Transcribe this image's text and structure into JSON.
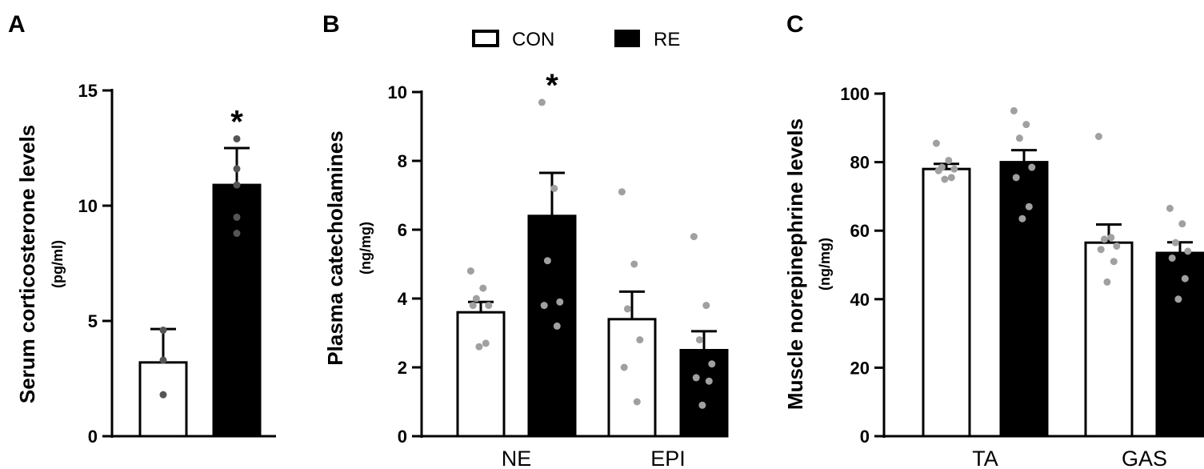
{
  "legend": {
    "con": "CON",
    "re": "RE"
  },
  "chart_data": [
    {
      "panel": "A",
      "type": "bar",
      "ylabel": "Serum corticosterone levels",
      "yunit": "(pg/ml)",
      "ylim": [
        0,
        15
      ],
      "yticks": [
        "0",
        "5",
        "10",
        "15"
      ],
      "categories": [
        ""
      ],
      "series": [
        {
          "name": "CON",
          "values": [
            3.2
          ],
          "error": [
            1.45
          ],
          "points": [
            [
              4.6,
              3.3,
              1.8
            ]
          ]
        },
        {
          "name": "RE",
          "values": [
            10.9
          ],
          "error": [
            1.6
          ],
          "points": [
            [
              12.9,
              11.6,
              10.9,
              9.5,
              8.8
            ]
          ]
        }
      ],
      "annotations": [
        {
          "series": "RE",
          "category": 0,
          "text": "*"
        }
      ]
    },
    {
      "panel": "B",
      "type": "bar",
      "ylabel": "Plasma catecholamines",
      "yunit": "(ng/mg)",
      "ylim": [
        0,
        10
      ],
      "yticks": [
        "0",
        "2",
        "4",
        "6",
        "8",
        "10"
      ],
      "categories": [
        "NE",
        "EPI"
      ],
      "series": [
        {
          "name": "CON",
          "values": [
            3.6,
            3.4
          ],
          "error": [
            0.3,
            0.8
          ],
          "points": [
            [
              4.8,
              4.3,
              4.0,
              3.8,
              3.8,
              2.7,
              2.6
            ],
            [
              7.1,
              5.0,
              3.7,
              2.8,
              2.0,
              1.0
            ]
          ]
        },
        {
          "name": "RE",
          "values": [
            6.4,
            2.5
          ],
          "error": [
            1.25,
            0.55
          ],
          "points": [
            [
              9.7,
              7.2,
              5.1,
              3.9,
              3.8,
              3.2
            ],
            [
              5.8,
              3.8,
              2.8,
              2.1,
              1.7,
              1.6,
              0.9
            ]
          ]
        }
      ],
      "annotations": [
        {
          "series": "RE",
          "category": 0,
          "text": "*"
        }
      ]
    },
    {
      "panel": "C",
      "type": "bar",
      "ylabel": "Muscle norepinephrine levels",
      "yunit": "(ng/mg)",
      "ylim": [
        0,
        100
      ],
      "yticks": [
        "0",
        "20",
        "40",
        "60",
        "80",
        "100"
      ],
      "categories": [
        "TA",
        "GAS"
      ],
      "series": [
        {
          "name": "CON",
          "values": [
            78,
            56.5
          ],
          "error": [
            1.5,
            5.3
          ],
          "points": [
            [
              85.5,
              80.5,
              78.5,
              78.0,
              77.5,
              75.5,
              75.0
            ],
            [
              87.5,
              58.0,
              57.5,
              55.5,
              54.5,
              51.0,
              45.0
            ]
          ]
        },
        {
          "name": "RE",
          "values": [
            80,
            53.5
          ],
          "error": [
            3.5,
            3.1
          ],
          "points": [
            [
              95.0,
              91.0,
              87.0,
              78.5,
              75.5,
              67.0,
              63.5
            ],
            [
              66.5,
              62.0,
              56.5,
              54.0,
              52.0,
              46.0,
              40.0
            ]
          ]
        }
      ],
      "annotations": []
    }
  ]
}
